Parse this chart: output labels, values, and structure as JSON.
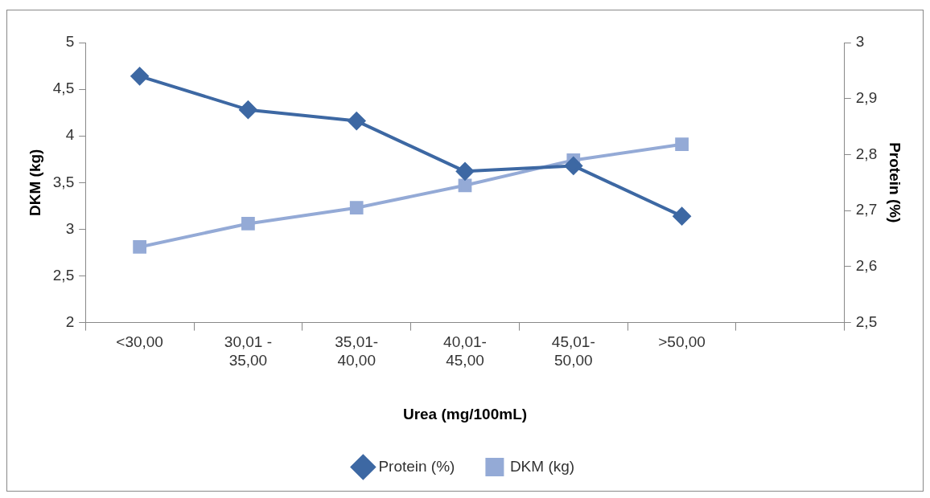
{
  "chart_data": {
    "type": "line",
    "categories": [
      "<30,00",
      "30,01 - 35,00",
      "35,01-40,00",
      "40,01-45,00",
      "45,01-50,00",
      ">50,00",
      null
    ],
    "series": [
      {
        "name": "DKM (kg)",
        "color": "#94aad6",
        "marker": "square",
        "values": [
          2.81,
          3.06,
          3.23,
          3.47,
          3.74,
          3.91,
          null
        ]
      },
      {
        "name": "Protein (%)",
        "color": "#3d68a3",
        "marker": "diamond",
        "axis": "y2",
        "values": [
          2.94,
          2.88,
          2.86,
          2.77,
          2.78,
          2.69,
          null
        ]
      }
    ],
    "xlabel": "Urea (mg/100mL)",
    "ylabel": "DKM (kg)",
    "y2label": "Protein (%)",
    "ylim": [
      2,
      5
    ],
    "yticks": [
      {
        "value": 2,
        "label": "2"
      },
      {
        "value": 2.5,
        "label": "2,5"
      },
      {
        "value": 3,
        "label": "3"
      },
      {
        "value": 3.5,
        "label": "3,5"
      },
      {
        "value": 4,
        "label": "4"
      },
      {
        "value": 4.5,
        "label": "4,5"
      },
      {
        "value": 5,
        "label": "5"
      }
    ],
    "y2lim": [
      2.5,
      3
    ],
    "y2ticks": [
      {
        "value": 2.5,
        "label": "2,5"
      },
      {
        "value": 2.6,
        "label": "2,6"
      },
      {
        "value": 2.7,
        "label": "2,7"
      },
      {
        "value": 2.8,
        "label": "2,8"
      },
      {
        "value": 2.9,
        "label": "2,9"
      },
      {
        "value": 3,
        "label": "3"
      }
    ],
    "grid": false,
    "legend": "bottom",
    "line_style": "solid"
  }
}
